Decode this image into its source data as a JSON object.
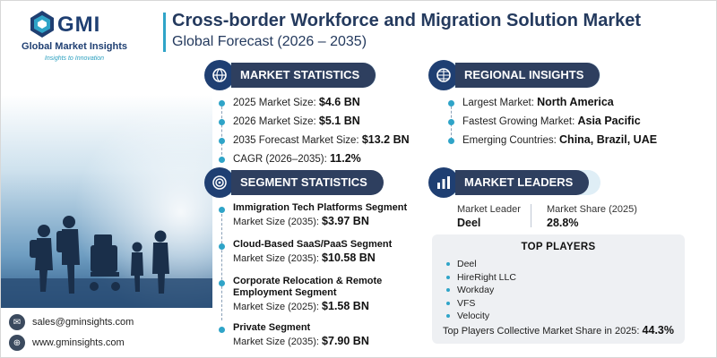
{
  "brand": {
    "name": "GMI",
    "full_name": "Global Market Insights",
    "tagline": "Insights to Innovation"
  },
  "header": {
    "title": "Cross-border Workforce and Migration Solution Market",
    "subtitle": "Global Forecast (2026 – 2035)"
  },
  "market_statistics": {
    "heading": "MARKET STATISTICS",
    "items": [
      {
        "label": "2025 Market Size: ",
        "value": "$4.6 BN"
      },
      {
        "label": "2026 Market Size: ",
        "value": "$5.1 BN"
      },
      {
        "label": "2035 Forecast Market Size: ",
        "value": "$13.2 BN"
      },
      {
        "label": "CAGR (2026–2035): ",
        "value": "11.2%"
      }
    ]
  },
  "regional_insights": {
    "heading": "REGIONAL INSIGHTS",
    "items": [
      {
        "label": "Largest Market: ",
        "value": "North America"
      },
      {
        "label": "Fastest Growing Market: ",
        "value": "Asia Pacific"
      },
      {
        "label": "Emerging Countries: ",
        "value": "China, Brazil, UAE"
      }
    ]
  },
  "segment_statistics": {
    "heading": "SEGMENT STATISTICS",
    "items": [
      {
        "title": "Immigration Tech Platforms Segment",
        "label": "Market Size (2035): ",
        "value": "$3.97 BN"
      },
      {
        "title": "Cloud-Based SaaS/PaaS Segment",
        "label": "Market Size (2035): ",
        "value": "$10.58 BN"
      },
      {
        "title": "Corporate Relocation & Remote Employment Segment",
        "label": "Market Size (2025): ",
        "value": "$1.58 BN"
      },
      {
        "title": "Private Segment",
        "label": "Market Size (2035): ",
        "value": "$7.90 BN"
      }
    ]
  },
  "market_leaders": {
    "heading": "MARKET LEADERS",
    "leader_label": "Market Leader",
    "leader_value": "Deel",
    "share_label": "Market Share (2025)",
    "share_value": "28.8%"
  },
  "top_players": {
    "heading": "TOP PLAYERS",
    "items": [
      "Deel",
      "HireRight LLC",
      "Workday",
      "VFS",
      "Velocity"
    ],
    "footer_label": "Top Players Collective Market Share in 2025: ",
    "footer_value": "44.3%"
  },
  "contact": {
    "email": "sales@gminsights.com",
    "website": "www.gminsights.com"
  },
  "colors": {
    "navy": "#1f3f72",
    "pill_dark": "#2e3f5f",
    "accent": "#2fa4c8"
  },
  "icons": [
    "globe-gear-icon",
    "globe-icon",
    "target-icon",
    "bar-chart-icon",
    "email-icon",
    "web-icon"
  ]
}
